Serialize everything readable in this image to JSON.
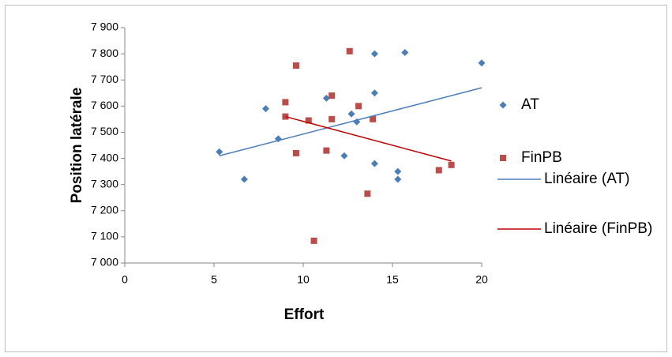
{
  "chart_data": {
    "type": "scatter",
    "x_label": "Effort",
    "y_label": "Position latérale",
    "xlim": [
      0,
      20
    ],
    "xticks": [
      0,
      5,
      10,
      15,
      20
    ],
    "ylim": [
      7000,
      7900
    ],
    "yticks": [
      {
        "value": 7000,
        "label": "7 000"
      },
      {
        "value": 7100,
        "label": "7 100"
      },
      {
        "value": 7200,
        "label": "7 200"
      },
      {
        "value": 7300,
        "label": "7 300"
      },
      {
        "value": 7400,
        "label": "7 400"
      },
      {
        "value": 7500,
        "label": "7 500"
      },
      {
        "value": 7600,
        "label": "7 600"
      },
      {
        "value": 7700,
        "label": "7 700"
      },
      {
        "value": 7800,
        "label": "7 800"
      },
      {
        "value": 7900,
        "label": "7 900"
      }
    ],
    "series": [
      {
        "name": "AT",
        "color": "#4a7ebb",
        "marker": "diamond",
        "x": [
          5.3,
          6.7,
          7.9,
          8.6,
          11.3,
          12.3,
          12.7,
          13.0,
          14.0,
          14.0,
          14.0,
          15.3,
          15.3,
          15.7,
          20.0
        ],
        "values": [
          7425,
          7320,
          7590,
          7475,
          7630,
          7410,
          7570,
          7540,
          7800,
          7650,
          7380,
          7350,
          7320,
          7805,
          7765
        ]
      },
      {
        "name": "FinPB",
        "color": "#be4b48",
        "marker": "square",
        "x": [
          9.0,
          9.0,
          9.6,
          9.6,
          10.3,
          10.6,
          11.3,
          11.6,
          11.6,
          12.6,
          13.1,
          13.6,
          13.9,
          17.6,
          18.3
        ],
        "values": [
          7615,
          7560,
          7755,
          7420,
          7545,
          7085,
          7430,
          7640,
          7550,
          7810,
          7600,
          7265,
          7550,
          7355,
          7375
        ]
      }
    ],
    "trendlines": [
      {
        "name": "Linéaire (AT)",
        "color": "#4a7ebb",
        "x": [
          5.3,
          20.0
        ],
        "values": [
          7410,
          7670
        ]
      },
      {
        "name": "Linéaire (FinPB)",
        "color": "#c00000",
        "x": [
          9.0,
          18.3
        ],
        "values": [
          7560,
          7390
        ]
      }
    ]
  }
}
